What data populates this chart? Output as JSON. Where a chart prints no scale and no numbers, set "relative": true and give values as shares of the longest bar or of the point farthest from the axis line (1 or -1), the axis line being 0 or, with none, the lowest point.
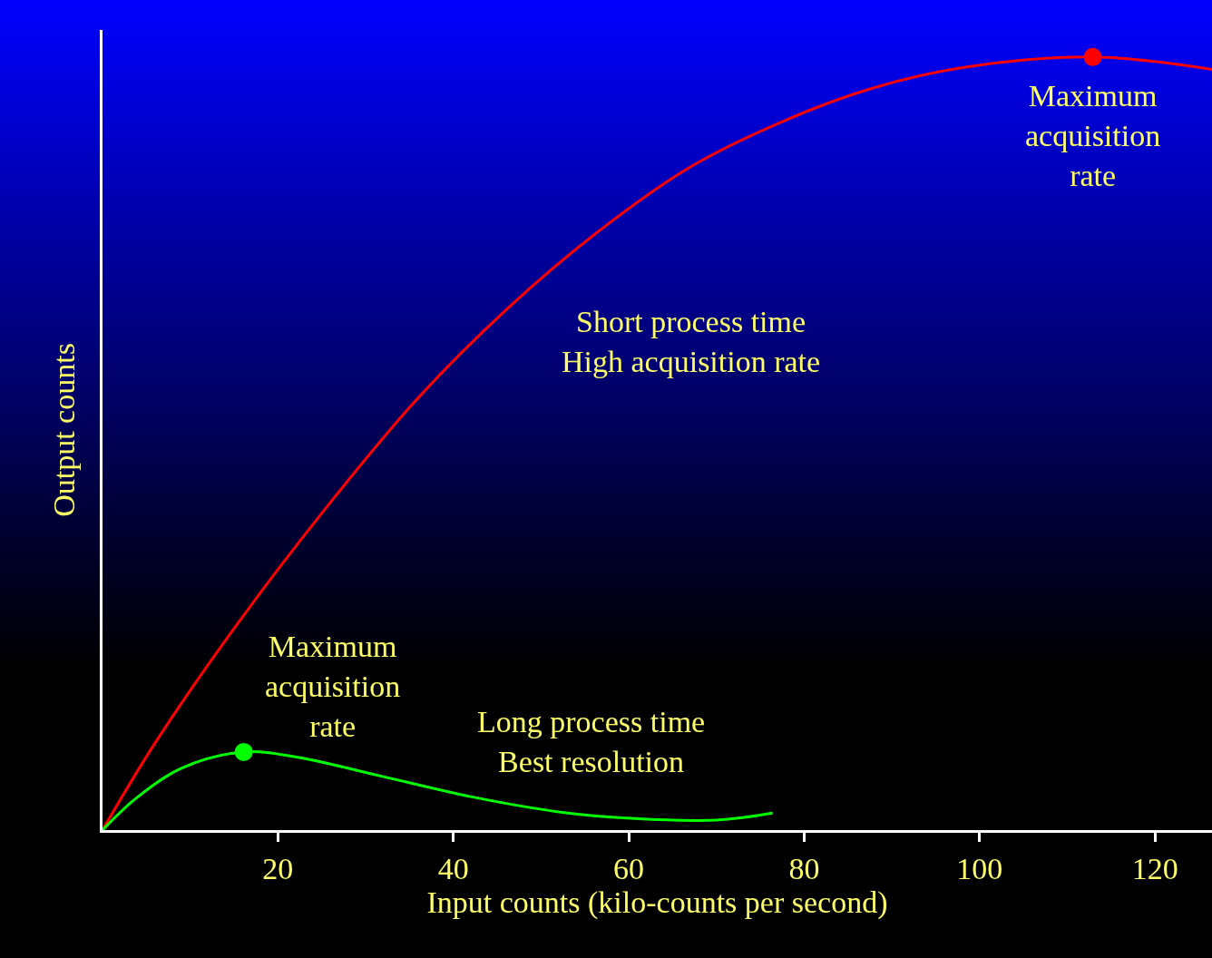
{
  "chart_data": {
    "type": "line",
    "relative": true,
    "xlabel": "Input counts (kilo-counts per second)",
    "ylabel": "Output counts",
    "xlim": [
      0,
      126.5
    ],
    "xticks": [
      20,
      40,
      60,
      80,
      100,
      120
    ],
    "grid": false,
    "marker": "none",
    "line_style": "solid",
    "series": [
      {
        "color": "#ff0000",
        "x": [
          0,
          5.9,
          15.2,
          25.5,
          35.9,
          46.2,
          56.6,
          66.9,
          77.2,
          87.6,
          97.9,
          112.9,
          126.5
        ],
        "values": [
          0,
          0.111,
          0.264,
          0.417,
          0.558,
          0.675,
          0.775,
          0.857,
          0.915,
          0.959,
          0.986,
          1.0,
          0.984
        ]
      },
      {
        "color": "#00ff00",
        "x": [
          0,
          3.8,
          9.0,
          16.1,
          22.4,
          31.7,
          42.1,
          52.4,
          60.7,
          70,
          76.4
        ],
        "values": [
          0,
          0.041,
          0.08,
          0.101,
          0.094,
          0.07,
          0.043,
          0.023,
          0.015,
          0.013,
          0.022
        ]
      },
      {
        "type": "scatter",
        "marker": "circle",
        "color": "#ff0000",
        "x": [
          112.9
        ],
        "values": [
          1.0
        ]
      },
      {
        "type": "scatter",
        "marker": "circle",
        "color": "#00ff00",
        "x": [
          16.1
        ],
        "values": [
          0.101
        ]
      }
    ],
    "annotations": [
      {
        "text": "Maximum\nacquisition\nrate",
        "x": 112.9,
        "y": 1.0
      },
      "Short process time\nHigh acquisition rate",
      {
        "text": "Maximum\nacquisition\nrate",
        "x": 16.1,
        "y": 0.101
      },
      "Long process time\nBest resolution"
    ]
  }
}
